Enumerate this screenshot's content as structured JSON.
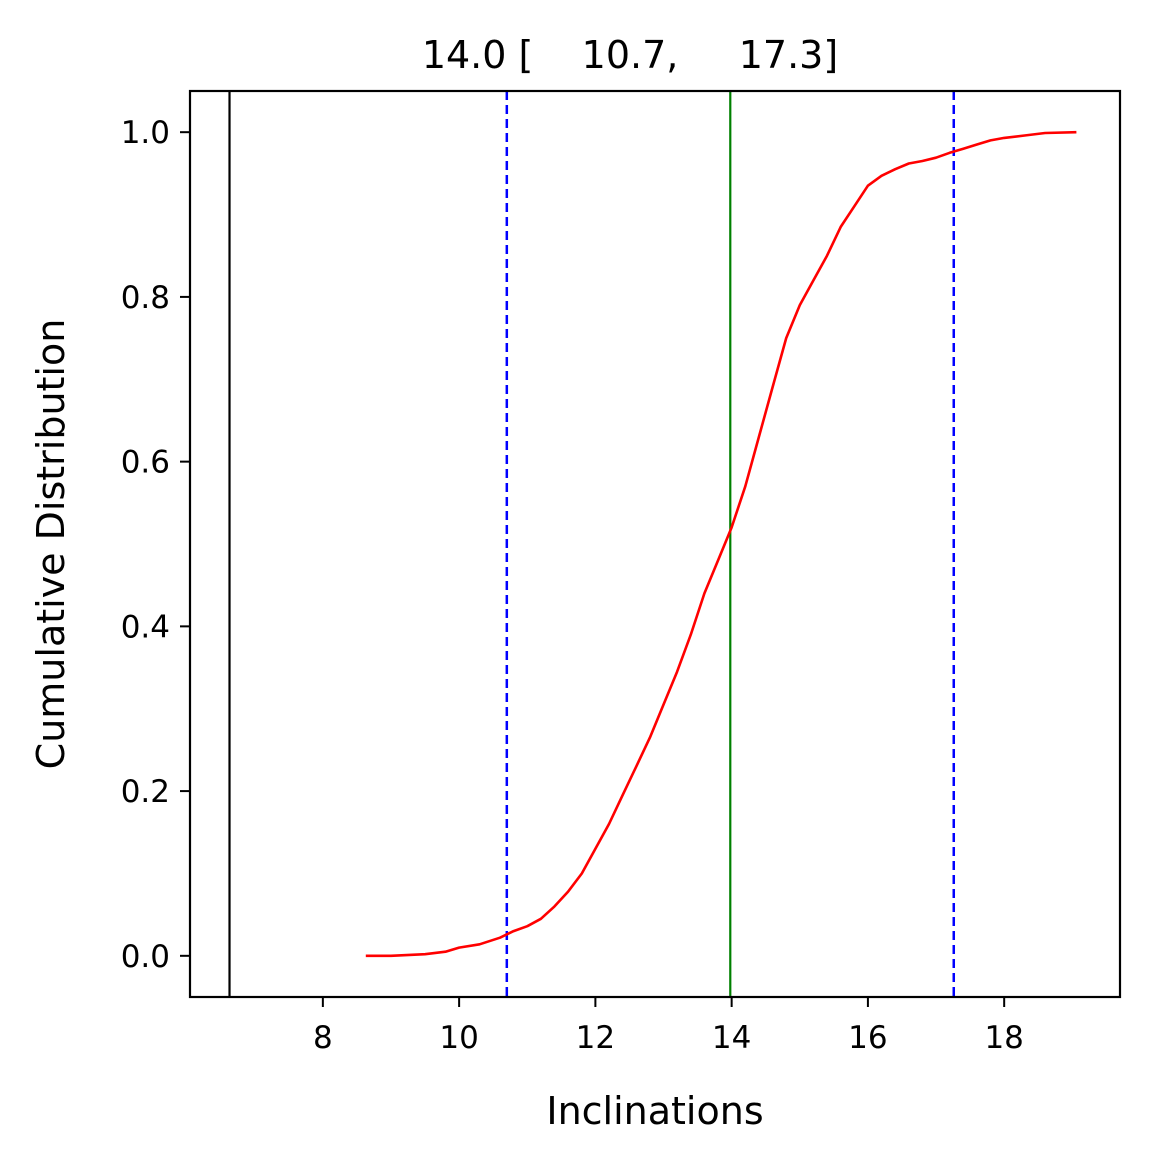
{
  "chart_data": {
    "type": "line",
    "title": "14.0 [    10.7,     17.3]",
    "xlabel": "Inclinations",
    "ylabel": "Cumulative Distribution",
    "xlim": [
      6.05,
      19.7
    ],
    "ylim": [
      -0.05,
      1.05
    ],
    "xticks": [
      8,
      10,
      12,
      14,
      16,
      18
    ],
    "xtick_labels": [
      "8",
      "10",
      "12",
      "14",
      "16",
      "18"
    ],
    "yticks": [
      0.0,
      0.2,
      0.4,
      0.6,
      0.8,
      1.0
    ],
    "ytick_labels": [
      "0.0",
      "0.2",
      "0.4",
      "0.6",
      "0.8",
      "1.0"
    ],
    "grid": false,
    "series": [
      {
        "color": "#ff0000",
        "x": [
          8.63,
          9.0,
          9.5,
          9.8,
          10.0,
          10.3,
          10.6,
          10.8,
          11.0,
          11.2,
          11.4,
          11.6,
          11.8,
          12.0,
          12.2,
          12.4,
          12.6,
          12.8,
          13.0,
          13.2,
          13.4,
          13.6,
          13.8,
          14.0,
          14.2,
          14.4,
          14.6,
          14.8,
          15.0,
          15.2,
          15.4,
          15.6,
          15.8,
          16.0,
          16.2,
          16.4,
          16.6,
          16.8,
          17.0,
          17.2,
          17.4,
          17.6,
          17.8,
          18.0,
          18.3,
          18.6,
          19.06
        ],
        "y": [
          0.0,
          0.0,
          0.002,
          0.005,
          0.01,
          0.014,
          0.022,
          0.03,
          0.036,
          0.045,
          0.06,
          0.078,
          0.1,
          0.13,
          0.16,
          0.195,
          0.23,
          0.265,
          0.305,
          0.345,
          0.39,
          0.44,
          0.48,
          0.52,
          0.57,
          0.63,
          0.69,
          0.75,
          0.79,
          0.82,
          0.85,
          0.885,
          0.91,
          0.935,
          0.947,
          0.955,
          0.962,
          0.965,
          0.969,
          0.975,
          0.98,
          0.985,
          0.99,
          0.993,
          0.996,
          0.999,
          1.0
        ]
      }
    ],
    "vlines": [
      {
        "x": 6.63,
        "color": "#000000",
        "style": "solid"
      },
      {
        "x": 10.7,
        "color": "#0000ff",
        "style": "dashed"
      },
      {
        "x": 13.98,
        "color": "#008000",
        "style": "solid"
      },
      {
        "x": 17.26,
        "color": "#0000ff",
        "style": "dashed"
      }
    ]
  }
}
